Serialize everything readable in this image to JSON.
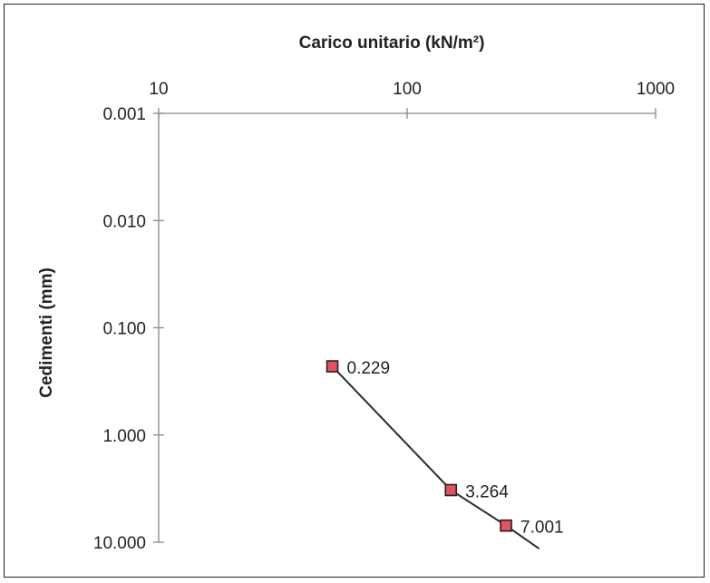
{
  "chart_data": {
    "type": "line",
    "title": "",
    "xlabel": "Carico unitario (kN/m²)",
    "ylabel": "Cedimenti (mm)",
    "x_scale": "log",
    "y_scale": "log",
    "y_inverted": true,
    "xlim": [
      10,
      1000
    ],
    "ylim": [
      0.001,
      10
    ],
    "x_tick_labels": [
      "10",
      "100",
      "1000"
    ],
    "y_tick_labels": [
      "0.001",
      "0.010",
      "0.100",
      "1.000",
      "10.000"
    ],
    "grid": false,
    "legend": "none",
    "series": [
      {
        "x": [
          50,
          150,
          250,
          340
        ],
        "y": [
          0.229,
          3.264,
          7.001,
          11.5
        ],
        "point_labels": [
          "0.229",
          "3.264",
          "7.001",
          ""
        ],
        "line_color": "#2b2b2b",
        "marker_color": "#e8505b",
        "marker_edge": "#222222"
      }
    ]
  }
}
